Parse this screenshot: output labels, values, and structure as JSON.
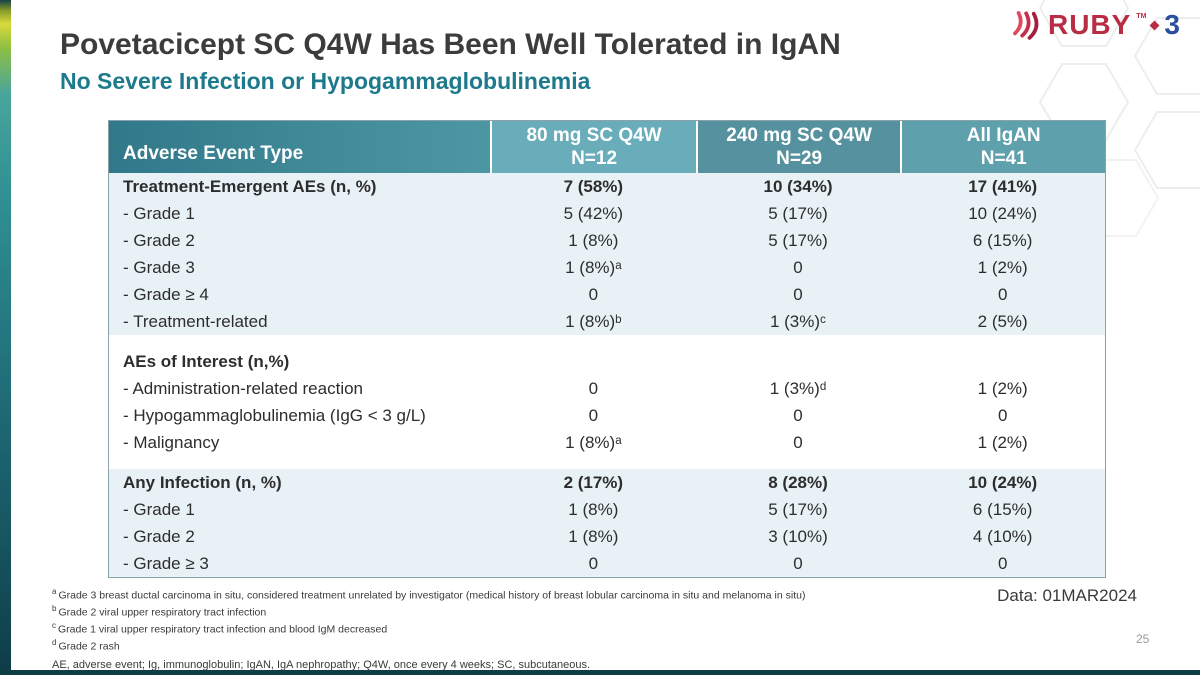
{
  "logo": {
    "brand": "RUBY",
    "tm": "TM",
    "number": "3"
  },
  "title": "Povetacicept SC Q4W Has Been Well Tolerated in IgAN",
  "subtitle": "No Severe Infection or Hypogammaglobulinemia",
  "table": {
    "columns": [
      {
        "label": "Adverse Event Type",
        "sub": ""
      },
      {
        "label": "80 mg SC Q4W",
        "sub": "N=12"
      },
      {
        "label": "240 mg SC Q4W",
        "sub": "N=29"
      },
      {
        "label": "All IgAN",
        "sub": "N=41"
      }
    ],
    "sections": [
      {
        "band": "shaded",
        "rows": [
          {
            "label": "Treatment-Emergent AEs (n, %)",
            "bold": true,
            "values": [
              "7 (58%)",
              "10 (34%)",
              "17 (41%)"
            ]
          },
          {
            "label": "- Grade 1",
            "bold": false,
            "values": [
              "5 (42%)",
              "5 (17%)",
              "10 (24%)"
            ]
          },
          {
            "label": "- Grade 2",
            "bold": false,
            "values": [
              "1 (8%)",
              "5 (17%)",
              "6 (15%)"
            ]
          },
          {
            "label": "- Grade 3",
            "bold": false,
            "values": [
              "1 (8%)ᵃ",
              "0",
              "1 (2%)"
            ]
          },
          {
            "label": "- Grade ≥ 4",
            "bold": false,
            "values": [
              "0",
              "0",
              "0"
            ]
          },
          {
            "label": "- Treatment-related",
            "bold": false,
            "values": [
              "1 (8%)ᵇ",
              "1 (3%)ᶜ",
              "2 (5%)"
            ]
          }
        ]
      },
      {
        "band": "white",
        "rows": [
          {
            "label": "AEs of Interest (n,%)",
            "bold": true,
            "values": [
              "",
              "",
              ""
            ]
          },
          {
            "label": "- Administration-related reaction",
            "bold": false,
            "values": [
              "0",
              "1 (3%)ᵈ",
              "1 (2%)"
            ]
          },
          {
            "label": "- Hypogammaglobulinemia (IgG < 3 g/L)",
            "bold": false,
            "values": [
              "0",
              "0",
              "0"
            ]
          },
          {
            "label": "- Malignancy",
            "bold": false,
            "values": [
              "1 (8%)ᵃ",
              "0",
              "1 (2%)"
            ]
          }
        ]
      },
      {
        "band": "shaded",
        "rows": [
          {
            "label": "Any Infection (n, %)",
            "bold": true,
            "values": [
              "2 (17%)",
              "8 (28%)",
              "10 (24%)"
            ]
          },
          {
            "label": "- Grade 1",
            "bold": false,
            "values": [
              "1 (8%)",
              "5 (17%)",
              "6 (15%)"
            ]
          },
          {
            "label": "- Grade 2",
            "bold": false,
            "values": [
              "1 (8%)",
              "3 (10%)",
              "4 (10%)"
            ]
          },
          {
            "label": "- Grade ≥ 3",
            "bold": false,
            "values": [
              "0",
              "0",
              "0"
            ]
          }
        ]
      }
    ]
  },
  "footnotes": [
    {
      "marker": "a",
      "text": "Grade 3 breast ductal carcinoma in situ, considered treatment unrelated by investigator (medical history of breast lobular carcinoma in situ and melanoma in situ)"
    },
    {
      "marker": "b",
      "text": "Grade 2 viral upper respiratory tract infection"
    },
    {
      "marker": "c",
      "text": "Grade 1 viral upper respiratory tract infection and blood IgM decreased"
    },
    {
      "marker": "d",
      "text": "Grade 2 rash"
    }
  ],
  "abbreviations": "AE, adverse event;  Ig, immunoglobulin;  IgAN, IgA nephropathy;  Q4W, once every 4 weeks;  SC, subcutaneous.",
  "data_date": "Data: 01MAR2024",
  "page_number": "25",
  "colors": {
    "subtitle_teal": "#1d7a8c",
    "header_dark": "#31798a",
    "header_light": "#69adba",
    "band_blue": "#e8f2f6",
    "accent_red": "#b82d44",
    "accent_blue": "#2b4f9e"
  }
}
